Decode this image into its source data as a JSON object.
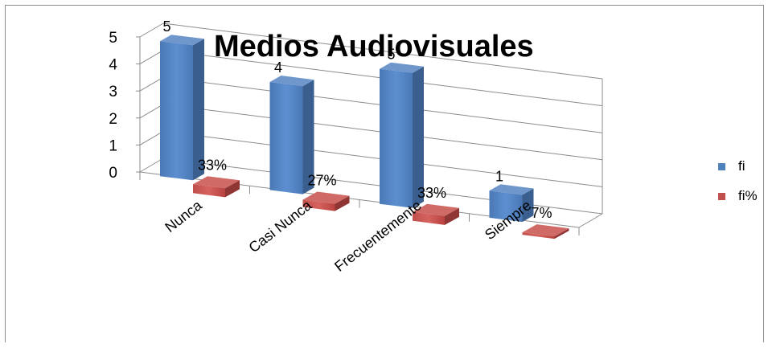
{
  "chart_data": {
    "type": "bar",
    "title": "Medios  Audiovisuales",
    "categories": [
      "Nunca",
      "Casi Nunca",
      "Frecuentemente",
      "Siempre"
    ],
    "series": [
      {
        "name": "fi",
        "values": [
          5,
          4,
          5,
          1
        ],
        "labels": [
          "5",
          "4",
          "5",
          "1"
        ],
        "color": "#4f81bd"
      },
      {
        "name": "fi%",
        "values": [
          0.33,
          0.27,
          0.33,
          0.07
        ],
        "labels": [
          "33%",
          "27%",
          "33%",
          "7%"
        ],
        "color": "#c0504d"
      }
    ],
    "yticks": [
      "0",
      "1",
      "2",
      "3",
      "4",
      "5"
    ],
    "ylim": [
      0,
      5
    ],
    "grid": true,
    "legend_position": "right",
    "style": "3d-clustered-column"
  }
}
